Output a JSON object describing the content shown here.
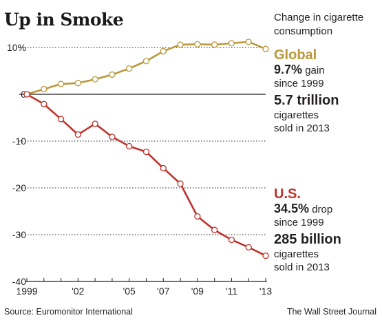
{
  "title": "Up in Smoke",
  "subtitle": "Change in cigarette consumption",
  "global": {
    "name": "Global",
    "stat_value": "9.7%",
    "stat_text": " gain",
    "since": "since 1999",
    "total": "5.7 trillion",
    "sold_line1": "cigarettes",
    "sold_line2": "sold in 2013"
  },
  "us": {
    "name": "U.S.",
    "stat_value": "34.5%",
    "stat_text": " drop",
    "since": "since 1999",
    "total": "285 billion",
    "sold_line1": "cigarettes",
    "sold_line2": "sold in 2013"
  },
  "source": "Source: Euromonitor International",
  "credit": "The Wall Street Journal",
  "colors": {
    "global": "#b9983a",
    "us": "#c0312b",
    "axis": "#231f20",
    "grid": "#231f20"
  },
  "chart_data": {
    "type": "line",
    "x": [
      1999,
      2000,
      2001,
      2002,
      2003,
      2004,
      2005,
      2006,
      2007,
      2008,
      2009,
      2010,
      2011,
      2012,
      2013
    ],
    "x_tick_values": [
      1999,
      2002,
      2005,
      2007,
      2009,
      2011,
      2013
    ],
    "x_tick_labels": [
      "1999",
      "'02",
      "'05",
      "'07",
      "'09",
      "'11",
      "'13"
    ],
    "y_ticks": [
      10,
      0,
      -10,
      -20,
      -30,
      -40
    ],
    "y_tick_labels": [
      "10%",
      "0",
      "-10",
      "-20",
      "-30",
      "-40"
    ],
    "ylim": [
      -40,
      10
    ],
    "xlim": [
      1999,
      2013
    ],
    "grid": "dotted horizontal",
    "series": [
      {
        "name": "Global",
        "color": "#b9983a",
        "values": [
          0,
          1.1,
          2.2,
          2.4,
          3.2,
          4.2,
          5.5,
          7.1,
          9.2,
          10.6,
          10.7,
          10.6,
          10.9,
          11.2,
          9.7
        ]
      },
      {
        "name": "U.S.",
        "color": "#c0312b",
        "values": [
          0,
          -2.1,
          -5.3,
          -8.6,
          -6.3,
          -9.1,
          -11.1,
          -12.3,
          -15.8,
          -19.1,
          -26.1,
          -29.0,
          -31.1,
          -32.7,
          -34.5
        ]
      }
    ]
  }
}
